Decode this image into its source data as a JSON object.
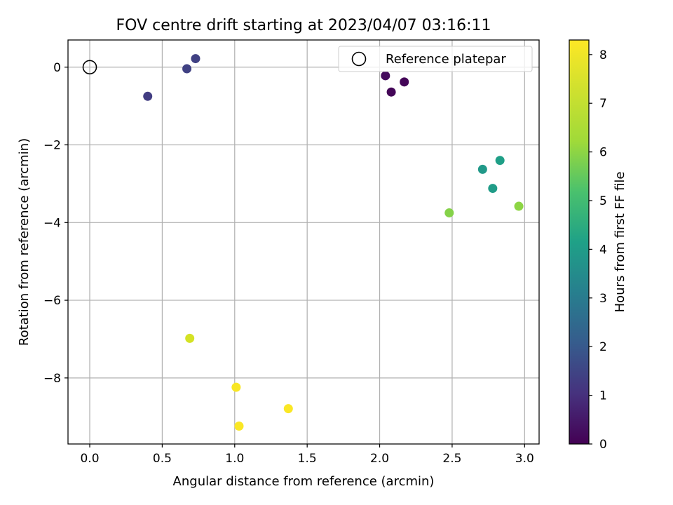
{
  "chart_data": {
    "type": "scatter",
    "title": "FOV centre drift starting at 2023/04/07 03:16:11",
    "xlabel": "Angular distance from reference (arcmin)",
    "ylabel": "Rotation from reference (arcmin)",
    "xlim": [
      -0.15,
      3.1
    ],
    "ylim": [
      -9.7,
      0.7
    ],
    "xticks": [
      0.0,
      0.5,
      1.0,
      1.5,
      2.0,
      2.5,
      3.0
    ],
    "xtick_labels": [
      "0.0",
      "0.5",
      "1.0",
      "1.5",
      "2.0",
      "2.5",
      "3.0"
    ],
    "yticks": [
      0,
      -2,
      -4,
      -6,
      -8
    ],
    "ytick_labels": [
      "0",
      "−2",
      "−4",
      "−6",
      "−8"
    ],
    "grid": true,
    "legend": {
      "position": "top-right",
      "entries": [
        "Reference platepar"
      ]
    },
    "reference_point": {
      "x": 0.0,
      "y": 0.0
    },
    "colorbar": {
      "label": "Hours from first FF file",
      "colormap": "viridis",
      "range": [
        0,
        8.3
      ],
      "ticks": [
        0,
        1,
        2,
        3,
        4,
        5,
        6,
        7,
        8
      ],
      "tick_labels": [
        "0",
        "1",
        "2",
        "3",
        "4",
        "5",
        "6",
        "7",
        "8"
      ]
    },
    "points": [
      {
        "x": 2.04,
        "y": -0.22,
        "hours": 0.2
      },
      {
        "x": 2.08,
        "y": -0.64,
        "hours": 0.1
      },
      {
        "x": 2.17,
        "y": -0.38,
        "hours": 0.1
      },
      {
        "x": 0.4,
        "y": -0.75,
        "hours": 1.3
      },
      {
        "x": 0.67,
        "y": -0.04,
        "hours": 1.4
      },
      {
        "x": 0.73,
        "y": 0.22,
        "hours": 1.4
      },
      {
        "x": 2.71,
        "y": -2.63,
        "hours": 3.9
      },
      {
        "x": 2.78,
        "y": -3.12,
        "hours": 4.0
      },
      {
        "x": 2.83,
        "y": -2.4,
        "hours": 4.1
      },
      {
        "x": 2.48,
        "y": -3.75,
        "hours": 5.9
      },
      {
        "x": 2.96,
        "y": -3.58,
        "hours": 6.0
      },
      {
        "x": 0.69,
        "y": -6.98,
        "hours": 7.5
      },
      {
        "x": 1.01,
        "y": -8.24,
        "hours": 8.2
      },
      {
        "x": 1.03,
        "y": -9.24,
        "hours": 8.25
      },
      {
        "x": 1.37,
        "y": -8.79,
        "hours": 8.25
      }
    ]
  }
}
